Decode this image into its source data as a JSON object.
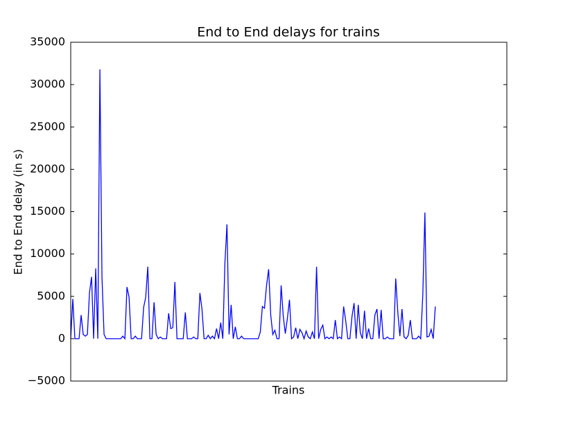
{
  "chart_data": {
    "type": "line",
    "title": "End to End delays for trains",
    "xlabel": "Trains",
    "ylabel": "End to End delay (in s)",
    "color": "#0000ff",
    "ylim": [
      -5000,
      35000
    ],
    "yticks": [
      {
        "value": -5000,
        "label": "−5000"
      },
      0,
      5000,
      10000,
      15000,
      20000,
      25000,
      30000,
      35000
    ],
    "values": [
      0,
      4700,
      0,
      0,
      0,
      2800,
      500,
      300,
      500,
      5400,
      7300,
      0,
      8300,
      0,
      31800,
      7300,
      500,
      0,
      0,
      0,
      0,
      0,
      0,
      0,
      0,
      300,
      0,
      6100,
      4900,
      0,
      0,
      300,
      0,
      0,
      0,
      3700,
      4900,
      8500,
      0,
      0,
      4300,
      500,
      0,
      200,
      0,
      0,
      0,
      3000,
      1200,
      1300,
      6700,
      0,
      0,
      0,
      0,
      3100,
      0,
      0,
      0,
      200,
      0,
      0,
      5400,
      3500,
      0,
      0,
      400,
      0,
      300,
      0,
      1200,
      0,
      1900,
      0,
      8900,
      13500,
      500,
      4000,
      0,
      1400,
      0,
      0,
      300,
      0,
      0,
      0,
      0,
      0,
      0,
      0,
      0,
      800,
      3800,
      3600,
      6300,
      8200,
      2800,
      500,
      1000,
      0,
      0,
      6300,
      2700,
      600,
      2400,
      4600,
      0,
      200,
      1300,
      0,
      1100,
      700,
      0,
      900,
      200,
      0,
      800,
      0,
      8500,
      0,
      1100,
      1600,
      0,
      200,
      0,
      200,
      0,
      2200,
      0,
      200,
      0,
      3800,
      2100,
      0,
      0,
      2600,
      4200,
      0,
      4000,
      700,
      0,
      3300,
      0,
      1200,
      0,
      0,
      2800,
      3500,
      0,
      3400,
      0,
      0,
      200,
      0,
      0,
      0,
      7100,
      3100,
      300,
      3500,
      200,
      0,
      400,
      2200,
      0,
      0,
      0,
      300,
      0,
      5200,
      14900,
      200,
      300,
      1100,
      0,
      3800
    ]
  }
}
